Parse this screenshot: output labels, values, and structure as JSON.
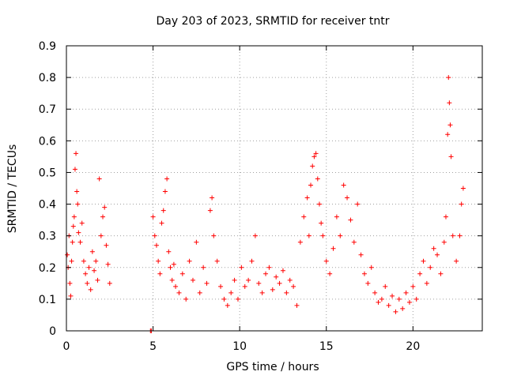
{
  "chart_data": {
    "type": "scatter",
    "title": "Day 203 of 2023, SRMTID for receiver tntr",
    "xlabel": "GPS time / hours",
    "ylabel": "SRMTID / TECUs",
    "xlim": [
      0,
      24
    ],
    "ylim": [
      0,
      0.9
    ],
    "xticks": [
      0,
      5,
      10,
      15,
      20
    ],
    "xtick_labels": [
      "0",
      "5",
      "10",
      "15",
      "20"
    ],
    "yticks": [
      0,
      0.1,
      0.2,
      0.3,
      0.4,
      0.5,
      0.6,
      0.7,
      0.8,
      0.9
    ],
    "ytick_labels": [
      "0",
      "0.1",
      "0.2",
      "0.3",
      "0.4",
      "0.5",
      "0.6",
      "0.7",
      "0.8",
      "0.9"
    ],
    "grid": true,
    "marker": "plus",
    "color": "#ff0000",
    "series": [
      {
        "name": "SRMTID",
        "points": [
          [
            0.05,
            0.24
          ],
          [
            0.1,
            0.2
          ],
          [
            0.15,
            0.3
          ],
          [
            0.2,
            0.15
          ],
          [
            0.25,
            0.11
          ],
          [
            0.3,
            0.22
          ],
          [
            0.35,
            0.28
          ],
          [
            0.4,
            0.33
          ],
          [
            0.45,
            0.36
          ],
          [
            0.5,
            0.51
          ],
          [
            0.55,
            0.56
          ],
          [
            0.6,
            0.44
          ],
          [
            0.65,
            0.4
          ],
          [
            0.7,
            0.31
          ],
          [
            0.8,
            0.28
          ],
          [
            0.9,
            0.34
          ],
          [
            1.0,
            0.22
          ],
          [
            1.1,
            0.18
          ],
          [
            1.2,
            0.15
          ],
          [
            1.3,
            0.2
          ],
          [
            1.4,
            0.13
          ],
          [
            1.5,
            0.25
          ],
          [
            1.6,
            0.19
          ],
          [
            1.7,
            0.22
          ],
          [
            1.8,
            0.16
          ],
          [
            1.9,
            0.48
          ],
          [
            2.0,
            0.3
          ],
          [
            2.1,
            0.36
          ],
          [
            2.2,
            0.39
          ],
          [
            2.3,
            0.27
          ],
          [
            2.4,
            0.21
          ],
          [
            2.5,
            0.15
          ],
          [
            4.85,
            0.0
          ],
          [
            4.9,
            0.0
          ],
          [
            5.0,
            0.36
          ],
          [
            5.1,
            0.3
          ],
          [
            5.2,
            0.27
          ],
          [
            5.3,
            0.22
          ],
          [
            5.4,
            0.18
          ],
          [
            5.5,
            0.34
          ],
          [
            5.6,
            0.38
          ],
          [
            5.7,
            0.44
          ],
          [
            5.8,
            0.48
          ],
          [
            5.9,
            0.25
          ],
          [
            6.0,
            0.2
          ],
          [
            6.1,
            0.16
          ],
          [
            6.2,
            0.21
          ],
          [
            6.3,
            0.14
          ],
          [
            6.5,
            0.12
          ],
          [
            6.7,
            0.18
          ],
          [
            6.9,
            0.1
          ],
          [
            7.1,
            0.22
          ],
          [
            7.3,
            0.16
          ],
          [
            7.5,
            0.28
          ],
          [
            7.7,
            0.12
          ],
          [
            7.9,
            0.2
          ],
          [
            8.1,
            0.15
          ],
          [
            8.3,
            0.38
          ],
          [
            8.4,
            0.42
          ],
          [
            8.5,
            0.3
          ],
          [
            8.7,
            0.22
          ],
          [
            8.9,
            0.14
          ],
          [
            9.1,
            0.1
          ],
          [
            9.3,
            0.08
          ],
          [
            9.5,
            0.12
          ],
          [
            9.7,
            0.16
          ],
          [
            9.9,
            0.1
          ],
          [
            10.1,
            0.2
          ],
          [
            10.3,
            0.14
          ],
          [
            10.5,
            0.16
          ],
          [
            10.7,
            0.22
          ],
          [
            10.9,
            0.3
          ],
          [
            11.1,
            0.15
          ],
          [
            11.3,
            0.12
          ],
          [
            11.5,
            0.18
          ],
          [
            11.7,
            0.2
          ],
          [
            11.9,
            0.13
          ],
          [
            12.1,
            0.17
          ],
          [
            12.3,
            0.15
          ],
          [
            12.5,
            0.19
          ],
          [
            12.7,
            0.12
          ],
          [
            12.9,
            0.16
          ],
          [
            13.1,
            0.14
          ],
          [
            13.3,
            0.08
          ],
          [
            13.5,
            0.28
          ],
          [
            13.7,
            0.36
          ],
          [
            13.9,
            0.42
          ],
          [
            14.0,
            0.3
          ],
          [
            14.1,
            0.46
          ],
          [
            14.2,
            0.52
          ],
          [
            14.3,
            0.55
          ],
          [
            14.4,
            0.56
          ],
          [
            14.5,
            0.48
          ],
          [
            14.6,
            0.4
          ],
          [
            14.7,
            0.34
          ],
          [
            14.8,
            0.3
          ],
          [
            15.0,
            0.22
          ],
          [
            15.2,
            0.18
          ],
          [
            15.4,
            0.26
          ],
          [
            15.6,
            0.36
          ],
          [
            15.8,
            0.3
          ],
          [
            16.0,
            0.46
          ],
          [
            16.2,
            0.42
          ],
          [
            16.4,
            0.35
          ],
          [
            16.6,
            0.28
          ],
          [
            16.8,
            0.4
          ],
          [
            17.0,
            0.24
          ],
          [
            17.2,
            0.18
          ],
          [
            17.4,
            0.15
          ],
          [
            17.6,
            0.2
          ],
          [
            17.8,
            0.12
          ],
          [
            18.0,
            0.09
          ],
          [
            18.2,
            0.1
          ],
          [
            18.4,
            0.14
          ],
          [
            18.6,
            0.08
          ],
          [
            18.8,
            0.11
          ],
          [
            19.0,
            0.06
          ],
          [
            19.2,
            0.1
          ],
          [
            19.4,
            0.07
          ],
          [
            19.6,
            0.12
          ],
          [
            19.8,
            0.09
          ],
          [
            20.0,
            0.14
          ],
          [
            20.2,
            0.1
          ],
          [
            20.4,
            0.18
          ],
          [
            20.6,
            0.22
          ],
          [
            20.8,
            0.15
          ],
          [
            21.0,
            0.2
          ],
          [
            21.2,
            0.26
          ],
          [
            21.4,
            0.24
          ],
          [
            21.6,
            0.18
          ],
          [
            21.8,
            0.28
          ],
          [
            21.9,
            0.36
          ],
          [
            22.0,
            0.62
          ],
          [
            22.05,
            0.8
          ],
          [
            22.1,
            0.72
          ],
          [
            22.15,
            0.65
          ],
          [
            22.2,
            0.55
          ],
          [
            22.3,
            0.3
          ],
          [
            22.5,
            0.22
          ],
          [
            22.7,
            0.3
          ],
          [
            22.8,
            0.4
          ],
          [
            22.9,
            0.45
          ]
        ]
      }
    ]
  }
}
